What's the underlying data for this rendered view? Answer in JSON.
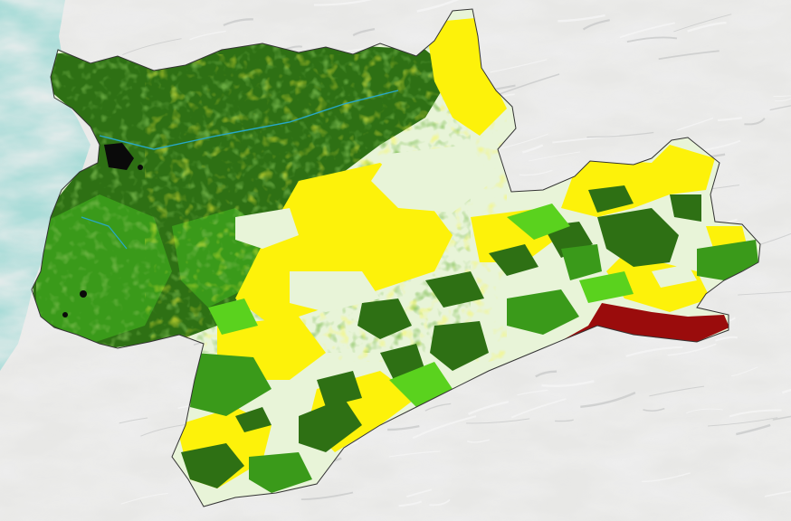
{
  "map": {
    "colors": {
      "sea": "#a9dcd8",
      "terrain_base": "#e8e8e6",
      "terrain_highlight": "#f6f6f6",
      "terrain_shadow": "#c4c6c6",
      "dark_green": "#2e7014",
      "mid_green": "#3a9a1a",
      "bright_green": "#5ad21e",
      "yellow": "#fdf20a",
      "light_yellow": "#eef34a",
      "pale_green": "#e8f4d8",
      "red": "#9a0c0c",
      "black": "#0a0a0a",
      "river": "#28a8c8"
    },
    "layers": [
      "sea",
      "hillshade-terrain",
      "region-mask",
      "dark-green-class",
      "mid-green-class",
      "bright-green-class",
      "yellow-class",
      "pale-class",
      "red-class",
      "black-class",
      "rivers"
    ]
  }
}
